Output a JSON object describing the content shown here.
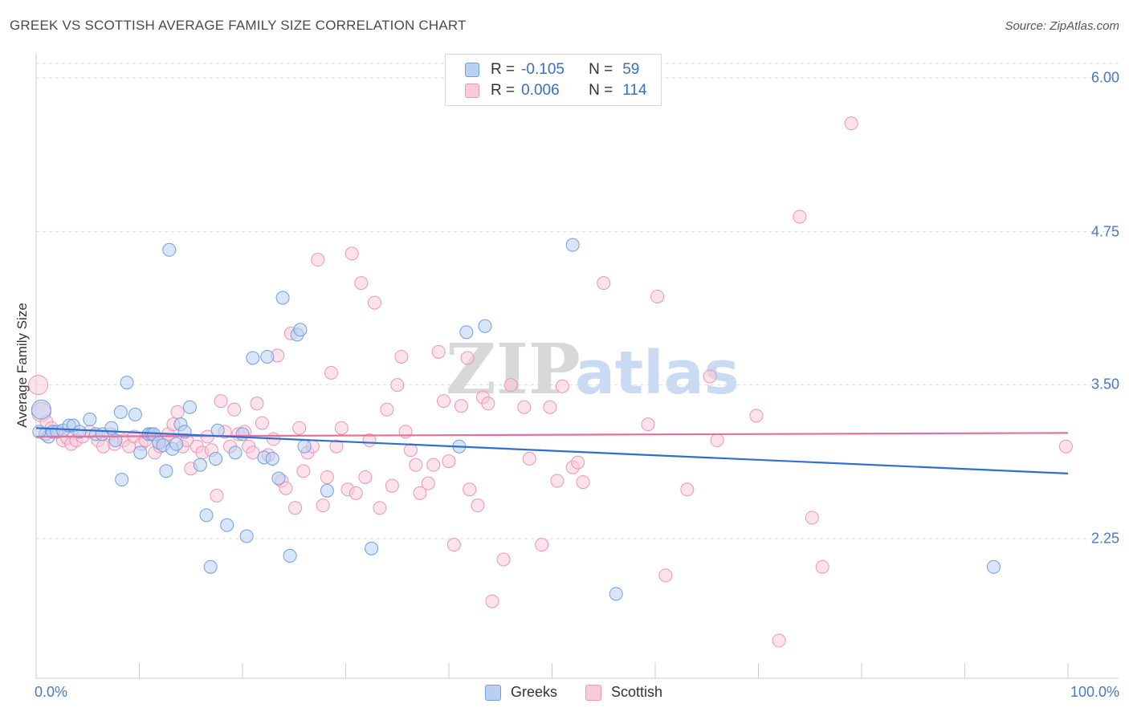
{
  "title": "GREEK VS SCOTTISH AVERAGE FAMILY SIZE CORRELATION CHART",
  "source": "Source: ZipAtlas.com",
  "watermark": {
    "zip": "ZIP",
    "atlas": "atlas"
  },
  "legend": {
    "greeks": {
      "r_label": "R =",
      "r_value": "-0.105",
      "n_label": "N =",
      "n_value": "59"
    },
    "scottish": {
      "r_label": "R =",
      "r_value": "0.006",
      "n_label": "N =",
      "n_value": "114"
    }
  },
  "colors": {
    "greeks_fill": "#b9d0f2",
    "greeks_stroke": "#6f9fe0",
    "greeks_line": "#2f6fcf",
    "scottish_fill": "#f9cbd9",
    "scottish_stroke": "#ec96b2",
    "scottish_line": "#e5709b",
    "axis_text": "#4a78c8",
    "grid": "#dddddd"
  },
  "chart_data": {
    "type": "scatter",
    "title": "GREEK VS SCOTTISH AVERAGE FAMILY SIZE CORRELATION CHART",
    "xlabel": "",
    "ylabel": "Average Family Size",
    "x_tick_labels": [
      "0.0%",
      "100.0%"
    ],
    "y_tick_labels": [
      "6.00",
      "4.75",
      "3.50",
      "2.25"
    ],
    "y_ticks": [
      6.0,
      4.75,
      3.5,
      2.25
    ],
    "xlim": [
      0,
      100
    ],
    "ylim": [
      1.25,
      6.12
    ],
    "grid": true,
    "legend_position": "bottom",
    "series": [
      {
        "name": "Greeks",
        "r": -0.105,
        "n": 59,
        "trend": {
          "x": [
            0,
            100
          ],
          "y": [
            3.15,
            2.78
          ]
        },
        "points": [
          [
            0.5,
            3.3
          ],
          [
            0.9,
            3.1
          ],
          [
            1.2,
            3.08
          ],
          [
            1.6,
            3.12
          ],
          [
            2.0,
            3.12
          ],
          [
            2.6,
            3.13
          ],
          [
            3.2,
            3.17
          ],
          [
            3.6,
            3.17
          ],
          [
            4.2,
            3.12
          ],
          [
            5.2,
            3.22
          ],
          [
            5.8,
            3.1
          ],
          [
            6.4,
            3.1
          ],
          [
            7.3,
            3.15
          ],
          [
            7.7,
            3.05
          ],
          [
            8.2,
            3.28
          ],
          [
            8.3,
            2.73
          ],
          [
            8.8,
            3.52
          ],
          [
            9.6,
            3.26
          ],
          [
            10.1,
            2.95
          ],
          [
            10.9,
            3.1
          ],
          [
            11.2,
            3.1
          ],
          [
            11.4,
            3.1
          ],
          [
            11.9,
            3.03
          ],
          [
            12.3,
            3.01
          ],
          [
            12.6,
            2.8
          ],
          [
            12.9,
            4.6
          ],
          [
            13.2,
            2.98
          ],
          [
            13.6,
            3.02
          ],
          [
            14.0,
            3.18
          ],
          [
            14.4,
            3.12
          ],
          [
            14.9,
            3.32
          ],
          [
            15.9,
            2.85
          ],
          [
            16.5,
            2.44
          ],
          [
            16.9,
            2.02
          ],
          [
            17.4,
            2.9
          ],
          [
            17.6,
            3.13
          ],
          [
            18.5,
            2.36
          ],
          [
            19.3,
            2.95
          ],
          [
            20.0,
            3.1
          ],
          [
            20.4,
            2.27
          ],
          [
            21.0,
            3.72
          ],
          [
            22.1,
            2.91
          ],
          [
            22.4,
            3.73
          ],
          [
            22.9,
            2.9
          ],
          [
            23.5,
            2.74
          ],
          [
            23.9,
            4.21
          ],
          [
            24.6,
            2.11
          ],
          [
            25.3,
            3.91
          ],
          [
            25.6,
            3.95
          ],
          [
            26.0,
            3.0
          ],
          [
            28.2,
            2.64
          ],
          [
            32.5,
            2.17
          ],
          [
            41.0,
            3.0
          ],
          [
            41.7,
            3.93
          ],
          [
            43.5,
            3.98
          ],
          [
            52.0,
            4.64
          ],
          [
            56.2,
            1.8
          ],
          [
            92.8,
            2.02
          ],
          [
            0.3,
            3.12
          ]
        ]
      },
      {
        "name": "Scottish",
        "r": 0.006,
        "n": 114,
        "trend": {
          "x": [
            0,
            100
          ],
          "y": [
            3.08,
            3.11
          ]
        },
        "points": [
          [
            0.2,
            3.5
          ],
          [
            0.5,
            3.28
          ],
          [
            1.0,
            3.2
          ],
          [
            1.5,
            3.15
          ],
          [
            2.2,
            3.12
          ],
          [
            2.6,
            3.05
          ],
          [
            3.0,
            3.07
          ],
          [
            3.4,
            3.02
          ],
          [
            3.9,
            3.05
          ],
          [
            4.5,
            3.08
          ],
          [
            5.2,
            3.12
          ],
          [
            6.0,
            3.05
          ],
          [
            6.5,
            3.0
          ],
          [
            7.2,
            3.1
          ],
          [
            7.6,
            3.02
          ],
          [
            8.5,
            3.05
          ],
          [
            9.0,
            3.0
          ],
          [
            9.5,
            3.08
          ],
          [
            10.2,
            3.02
          ],
          [
            10.6,
            3.05
          ],
          [
            11.0,
            3.1
          ],
          [
            11.5,
            2.95
          ],
          [
            12.0,
            3.0
          ],
          [
            12.4,
            3.05
          ],
          [
            12.8,
            3.1
          ],
          [
            13.3,
            3.18
          ],
          [
            13.7,
            3.28
          ],
          [
            14.2,
            3.0
          ],
          [
            14.6,
            3.05
          ],
          [
            15.0,
            2.82
          ],
          [
            15.6,
            3.0
          ],
          [
            16.1,
            2.95
          ],
          [
            16.6,
            3.08
          ],
          [
            17.0,
            2.97
          ],
          [
            17.5,
            2.6
          ],
          [
            17.9,
            3.37
          ],
          [
            18.3,
            3.12
          ],
          [
            18.8,
            3.0
          ],
          [
            19.2,
            3.3
          ],
          [
            19.6,
            3.1
          ],
          [
            20.2,
            3.12
          ],
          [
            20.6,
            3.0
          ],
          [
            21.0,
            2.95
          ],
          [
            21.4,
            3.35
          ],
          [
            21.9,
            3.19
          ],
          [
            22.5,
            2.93
          ],
          [
            23.0,
            3.06
          ],
          [
            23.4,
            3.74
          ],
          [
            23.8,
            2.72
          ],
          [
            24.2,
            2.66
          ],
          [
            24.7,
            3.92
          ],
          [
            25.1,
            2.5
          ],
          [
            25.5,
            3.15
          ],
          [
            25.9,
            2.8
          ],
          [
            26.3,
            2.95
          ],
          [
            26.8,
            3.0
          ],
          [
            27.3,
            4.52
          ],
          [
            27.8,
            2.52
          ],
          [
            28.2,
            2.75
          ],
          [
            28.6,
            3.6
          ],
          [
            29.1,
            3.0
          ],
          [
            29.6,
            3.15
          ],
          [
            30.2,
            2.65
          ],
          [
            30.6,
            4.57
          ],
          [
            31.0,
            2.62
          ],
          [
            31.5,
            4.33
          ],
          [
            31.9,
            2.75
          ],
          [
            32.3,
            3.05
          ],
          [
            32.8,
            4.17
          ],
          [
            33.3,
            2.5
          ],
          [
            34.0,
            3.3
          ],
          [
            34.5,
            2.68
          ],
          [
            35.0,
            3.5
          ],
          [
            35.4,
            3.73
          ],
          [
            35.8,
            3.12
          ],
          [
            36.3,
            2.97
          ],
          [
            36.8,
            2.85
          ],
          [
            37.2,
            2.62
          ],
          [
            38.0,
            2.7
          ],
          [
            38.5,
            2.85
          ],
          [
            39.0,
            3.77
          ],
          [
            39.5,
            3.37
          ],
          [
            40.0,
            2.88
          ],
          [
            40.5,
            2.2
          ],
          [
            41.2,
            3.33
          ],
          [
            41.8,
            3.72
          ],
          [
            42.0,
            2.65
          ],
          [
            42.8,
            2.52
          ],
          [
            43.3,
            3.4
          ],
          [
            43.8,
            3.35
          ],
          [
            45.3,
            2.08
          ],
          [
            46.0,
            3.5
          ],
          [
            47.3,
            3.32
          ],
          [
            47.8,
            2.9
          ],
          [
            49.0,
            2.2
          ],
          [
            49.8,
            3.32
          ],
          [
            50.5,
            2.72
          ],
          [
            51.0,
            3.49
          ],
          [
            52.0,
            2.83
          ],
          [
            52.5,
            2.87
          ],
          [
            53.0,
            2.71
          ],
          [
            55.0,
            4.33
          ],
          [
            59.3,
            3.18
          ],
          [
            60.2,
            4.22
          ],
          [
            61.0,
            1.95
          ],
          [
            63.1,
            2.65
          ],
          [
            65.3,
            3.57
          ],
          [
            66.0,
            3.05
          ],
          [
            69.8,
            3.25
          ],
          [
            72.0,
            1.42
          ],
          [
            74.0,
            4.87
          ],
          [
            75.2,
            2.42
          ],
          [
            76.2,
            2.02
          ],
          [
            79.0,
            5.63
          ],
          [
            99.8,
            3.0
          ],
          [
            44.2,
            1.74
          ]
        ]
      }
    ]
  }
}
